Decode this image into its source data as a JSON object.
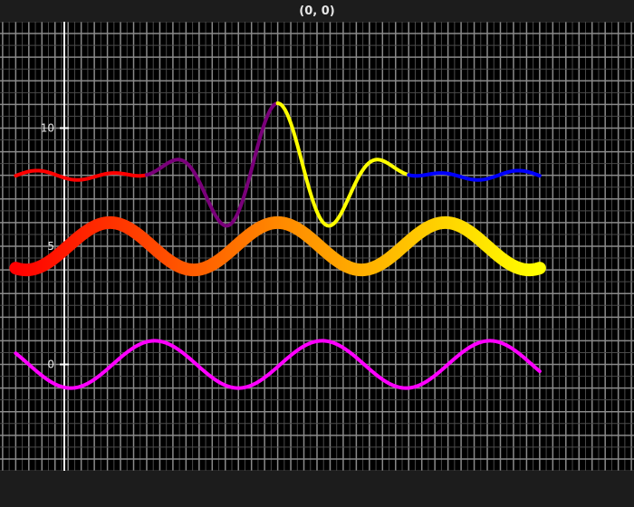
{
  "window": {
    "title": "(0, 0)"
  },
  "colors": {
    "background": "#000000",
    "grid_major": "#8a8a8a",
    "grid_minor": "#4a4a4a",
    "axis": "#ffffff"
  },
  "chart_data": {
    "type": "line",
    "title": "",
    "xlabel": "",
    "ylabel": "",
    "xlim": [
      -0.6,
      23.6
    ],
    "ylim": [
      -4.5,
      14.5
    ],
    "grid": true,
    "y_ticks": [
      {
        "value": 0,
        "label": "0"
      },
      {
        "value": 5,
        "label": "5"
      },
      {
        "value": 10,
        "label": "10"
      }
    ],
    "series": [
      {
        "style": "segmented-by-color",
        "function": "damped-oscillation",
        "x_range": [
          0,
          20
        ],
        "line_width": 4,
        "segments": [
          {
            "x_range": [
              0,
              5
            ],
            "color": "#ff0000"
          },
          {
            "x_range": [
              5,
              10
            ],
            "color": "#7a007a"
          },
          {
            "x_range": [
              10,
              15
            ],
            "color": "#ffff00"
          },
          {
            "x_range": [
              15,
              20
            ],
            "color": "#0000ff"
          }
        ],
        "samples": [
          [
            0,
            7.95
          ],
          [
            1,
            7.85
          ],
          [
            2,
            8.1
          ],
          [
            3,
            8.2
          ],
          [
            4,
            7.9
          ],
          [
            5,
            8.2
          ],
          [
            6,
            7.65
          ],
          [
            7,
            8.3
          ],
          [
            8,
            7.4
          ],
          [
            10,
            11.0
          ],
          [
            11.2,
            7.45
          ],
          [
            12.3,
            8.35
          ],
          [
            13.4,
            7.75
          ],
          [
            14.5,
            8.2
          ],
          [
            15.5,
            7.85
          ],
          [
            17.8,
            8.15
          ],
          [
            20,
            8.0
          ]
        ]
      },
      {
        "style": "gradient",
        "function": "sine",
        "x_range": [
          0,
          20
        ],
        "line_width": 14,
        "gradient_colors": [
          "#ff0000",
          "#ff8800",
          "#ffff00"
        ],
        "samples": [
          [
            0,
            4.15
          ],
          [
            3.7,
            6.0
          ],
          [
            6.8,
            4.0
          ],
          [
            10,
            6.05
          ],
          [
            13.2,
            4.0
          ],
          [
            16.3,
            6.0
          ],
          [
            19.4,
            4.0
          ],
          [
            20,
            4.25
          ]
        ]
      },
      {
        "style": "solid",
        "function": "sine",
        "x_range": [
          0,
          20
        ],
        "line_width": 4,
        "color": "#ff00ff",
        "samples": [
          [
            0,
            0.6
          ],
          [
            2.1,
            -1.0
          ],
          [
            5.3,
            1.0
          ],
          [
            8.4,
            -1.0
          ],
          [
            11.5,
            1.0
          ],
          [
            14.6,
            -1.0
          ],
          [
            17.7,
            1.0
          ],
          [
            20,
            -0.6
          ]
        ]
      }
    ]
  }
}
